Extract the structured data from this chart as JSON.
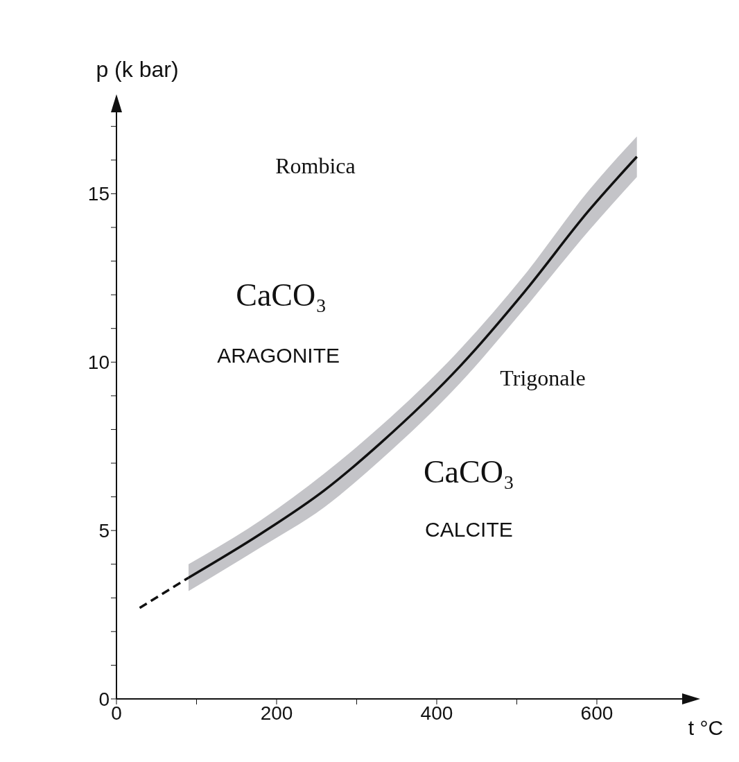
{
  "chart_data": {
    "type": "line",
    "xlabel": "t °C",
    "ylabel": "p (k bar)",
    "xlim": [
      0,
      710
    ],
    "ylim": [
      0,
      17.5
    ],
    "xticks": [
      0,
      {
        "value": 100,
        "label": null
      },
      200,
      {
        "value": 300,
        "label": null
      },
      400,
      {
        "value": 500,
        "label": null
      },
      600
    ],
    "yticks": [
      0,
      {
        "value": 1,
        "label": null
      },
      {
        "value": 2,
        "label": null
      },
      {
        "value": 3,
        "label": null
      },
      {
        "value": 4,
        "label": null
      },
      5,
      {
        "value": 6,
        "label": null
      },
      {
        "value": 7,
        "label": null
      },
      {
        "value": 8,
        "label": null
      },
      {
        "value": 9,
        "label": null
      },
      10,
      {
        "value": 11,
        "label": null
      },
      {
        "value": 12,
        "label": null
      },
      {
        "value": 13,
        "label": null
      },
      {
        "value": 14,
        "label": null
      },
      15,
      {
        "value": 16,
        "label": null
      },
      {
        "value": 17,
        "label": null
      }
    ],
    "series": [
      {
        "color": "#111111",
        "line_style": "solid",
        "x": [
          90,
          180,
          260,
          330,
          430,
          510,
          590,
          650
        ],
        "values": [
          3.6,
          4.9,
          6.2,
          7.6,
          9.9,
          12.1,
          14.5,
          16.1
        ],
        "lower": [
          3.2,
          4.5,
          5.7,
          7.1,
          9.4,
          11.6,
          13.9,
          15.5
        ],
        "upper": [
          4.0,
          5.3,
          6.7,
          8.1,
          10.4,
          12.6,
          15.1,
          16.7
        ]
      },
      {
        "color": "#111111",
        "line_style": "dashed",
        "x": [
          29,
          90
        ],
        "values": [
          2.7,
          3.6
        ]
      }
    ],
    "annotations": [
      "Rombica",
      "CaCO₃",
      "ARAGONITE",
      "Trigonale",
      "CaCO₃",
      "CALCITE"
    ]
  }
}
